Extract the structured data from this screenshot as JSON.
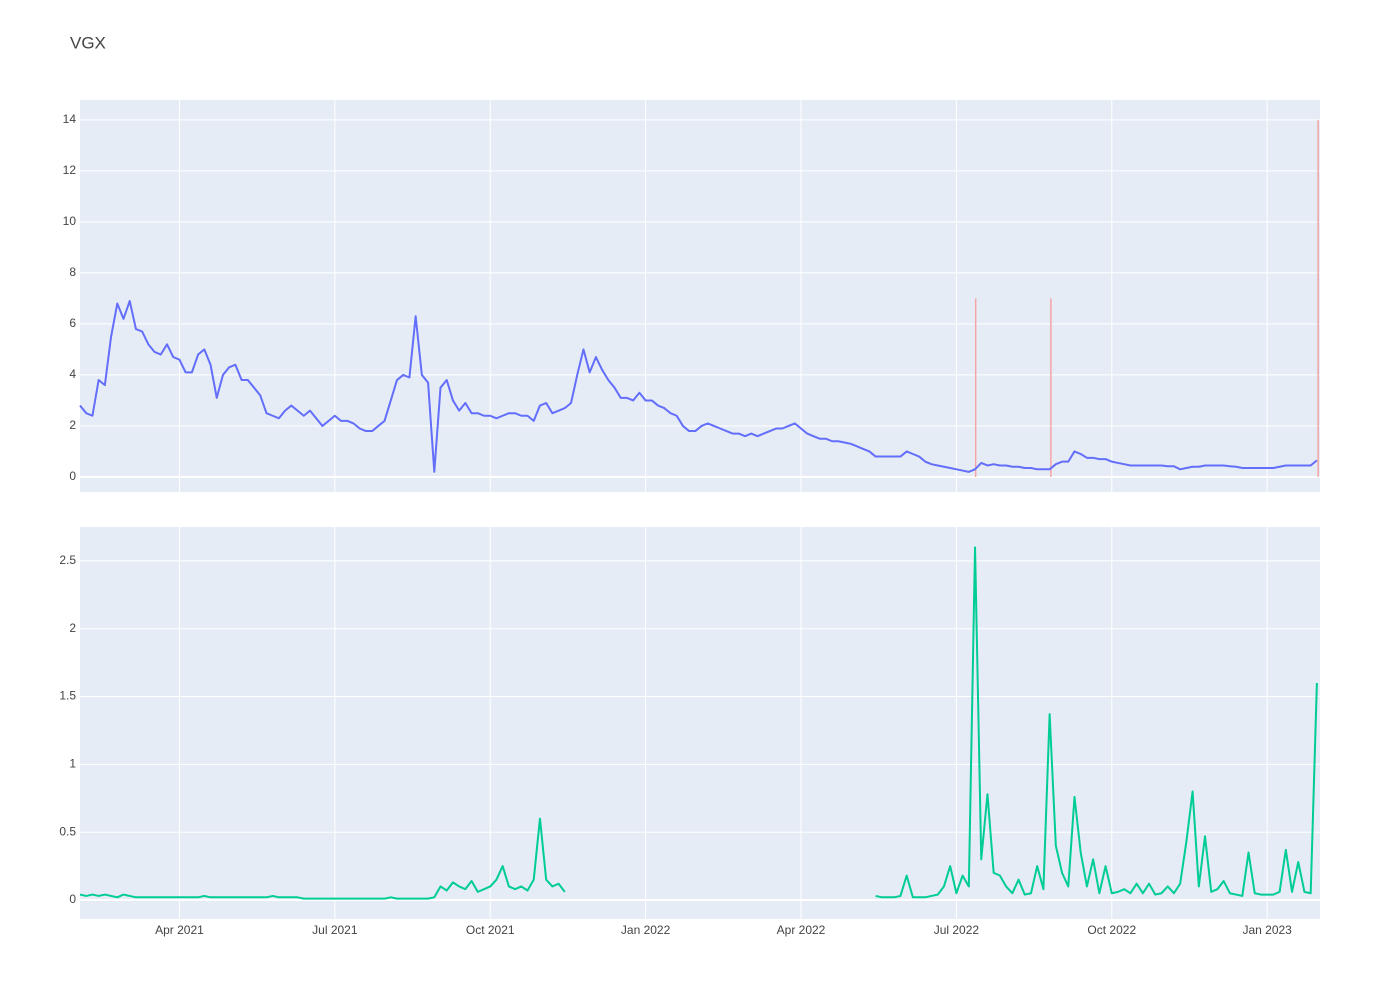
{
  "chart_data": {
    "type": "line",
    "title": "VGX",
    "x": [
      2021.09,
      2021.1,
      2021.11,
      2021.12,
      2021.13,
      2021.14,
      2021.15,
      2021.16,
      2021.17,
      2021.18,
      2021.19,
      2021.2,
      2021.21,
      2021.22,
      2021.23,
      2021.24,
      2021.25,
      2021.26,
      2021.27,
      2021.28,
      2021.29,
      2021.3,
      2021.31,
      2021.32,
      2021.33,
      2021.34,
      2021.35,
      2021.36,
      2021.37,
      2021.38,
      2021.39,
      2021.4,
      2021.41,
      2021.42,
      2021.43,
      2021.44,
      2021.45,
      2021.46,
      2021.47,
      2021.48,
      2021.49,
      2021.5,
      2021.51,
      2021.52,
      2021.53,
      2021.54,
      2021.55,
      2021.56,
      2021.57,
      2021.58,
      2021.59,
      2021.6,
      2021.61,
      2021.62,
      2021.63,
      2021.64,
      2021.65,
      2021.66,
      2021.67,
      2021.68,
      2021.69,
      2021.7,
      2021.71,
      2021.72,
      2021.73,
      2021.74,
      2021.75,
      2021.76,
      2021.77,
      2021.78,
      2021.79,
      2021.8,
      2021.81,
      2021.82,
      2021.83,
      2021.84,
      2021.85,
      2021.86,
      2021.87,
      2021.88,
      2021.89,
      2021.9,
      2021.91,
      2021.92,
      2021.93,
      2021.94,
      2021.95,
      2021.96,
      2021.97,
      2021.98,
      2021.99,
      2022.0,
      2022.01,
      2022.02,
      2022.03,
      2022.04,
      2022.05,
      2022.06,
      2022.07,
      2022.08,
      2022.09,
      2022.1,
      2022.11,
      2022.12,
      2022.13,
      2022.14,
      2022.15,
      2022.16,
      2022.17,
      2022.18,
      2022.19,
      2022.2,
      2022.21,
      2022.22,
      2022.23,
      2022.24,
      2022.25,
      2022.26,
      2022.27,
      2022.28,
      2022.29,
      2022.3,
      2022.31,
      2022.32,
      2022.33,
      2022.34,
      2022.35,
      2022.36,
      2022.37,
      2022.38,
      2022.39,
      2022.4,
      2022.41,
      2022.42,
      2022.43,
      2022.44,
      2022.45,
      2022.46,
      2022.47,
      2022.48,
      2022.49,
      2022.5,
      2022.51,
      2022.52,
      2022.53,
      2022.54,
      2022.55,
      2022.56,
      2022.57,
      2022.58,
      2022.59,
      2022.6,
      2022.61,
      2022.62,
      2022.63,
      2022.64,
      2022.65,
      2022.66,
      2022.67,
      2022.68,
      2022.69,
      2022.7,
      2022.71,
      2022.72,
      2022.73,
      2022.74,
      2022.75,
      2022.76,
      2022.77,
      2022.78,
      2022.79,
      2022.8,
      2022.81,
      2022.82,
      2022.83,
      2022.84,
      2022.85,
      2022.86,
      2022.87,
      2022.88,
      2022.89,
      2022.9,
      2022.91,
      2022.92,
      2022.93,
      2022.94,
      2022.95,
      2022.96,
      2022.97,
      2022.98,
      2022.99,
      2023.0,
      2023.01,
      2023.02,
      2023.03,
      2023.04,
      2023.05,
      2023.06,
      2023.07,
      2023.08
    ],
    "series": [
      {
        "color": "#636efa",
        "values": [
          2.8,
          2.5,
          2.4,
          3.8,
          3.6,
          5.5,
          6.8,
          6.2,
          6.9,
          5.8,
          5.7,
          5.2,
          4.9,
          4.8,
          5.2,
          4.7,
          4.6,
          4.1,
          4.1,
          4.8,
          5.0,
          4.4,
          3.1,
          4.0,
          4.3,
          4.4,
          3.8,
          3.8,
          3.5,
          3.2,
          2.5,
          2.4,
          2.3,
          2.6,
          2.8,
          2.6,
          2.4,
          2.6,
          2.3,
          2.0,
          2.2,
          2.4,
          2.2,
          2.2,
          2.1,
          1.9,
          1.8,
          1.8,
          2.0,
          2.2,
          3.0,
          3.8,
          4.0,
          3.9,
          6.3,
          4.0,
          3.7,
          0.2,
          3.5,
          3.8,
          3.0,
          2.6,
          2.9,
          2.5,
          2.5,
          2.4,
          2.4,
          2.3,
          2.4,
          2.5,
          2.5,
          2.4,
          2.4,
          2.2,
          2.8,
          2.9,
          2.5,
          2.6,
          2.7,
          2.9,
          4.0,
          5.0,
          4.1,
          4.7,
          4.2,
          3.8,
          3.5,
          3.1,
          3.1,
          3.0,
          3.3,
          3.0,
          3.0,
          2.8,
          2.7,
          2.5,
          2.4,
          2.0,
          1.8,
          1.8,
          2.0,
          2.1,
          2.0,
          1.9,
          1.8,
          1.7,
          1.7,
          1.6,
          1.7,
          1.6,
          1.7,
          1.8,
          1.9,
          1.9,
          2.0,
          2.1,
          1.9,
          1.7,
          1.6,
          1.5,
          1.5,
          1.4,
          1.4,
          1.35,
          1.3,
          1.2,
          1.1,
          1.0,
          0.8,
          0.8,
          0.8,
          0.8,
          0.8,
          1.0,
          0.9,
          0.8,
          0.6,
          0.5,
          0.45,
          0.4,
          0.35,
          0.3,
          0.25,
          0.2,
          0.3,
          0.55,
          0.45,
          0.5,
          0.45,
          0.45,
          0.4,
          0.4,
          0.35,
          0.35,
          0.3,
          0.3,
          0.3,
          0.5,
          0.6,
          0.6,
          1.0,
          0.9,
          0.75,
          0.75,
          0.7,
          0.7,
          0.6,
          0.55,
          0.5,
          0.45,
          0.45,
          0.45,
          0.45,
          0.45,
          0.45,
          0.42,
          0.42,
          0.3,
          0.35,
          0.4,
          0.4,
          0.45,
          0.45,
          0.45,
          0.45,
          0.42,
          0.4,
          0.35,
          0.35,
          0.35,
          0.35,
          0.35,
          0.35,
          0.4,
          0.45,
          0.45,
          0.45,
          0.45,
          0.45,
          0.65
        ]
      },
      {
        "color": "#00cc96",
        "axis": "y2",
        "values": [
          0.04,
          0.03,
          0.04,
          0.03,
          0.04,
          0.03,
          0.02,
          0.04,
          0.03,
          0.02,
          0.02,
          0.02,
          0.02,
          0.02,
          0.02,
          0.02,
          0.02,
          0.02,
          0.02,
          0.02,
          0.03,
          0.02,
          0.02,
          0.02,
          0.02,
          0.02,
          0.02,
          0.02,
          0.02,
          0.02,
          0.02,
          0.03,
          0.02,
          0.02,
          0.02,
          0.02,
          0.01,
          0.01,
          0.01,
          0.01,
          0.01,
          0.01,
          0.01,
          0.01,
          0.01,
          0.01,
          0.01,
          0.01,
          0.01,
          0.01,
          0.02,
          0.01,
          0.01,
          0.01,
          0.01,
          0.01,
          0.01,
          0.02,
          0.1,
          0.07,
          0.13,
          0.1,
          0.08,
          0.14,
          0.06,
          0.08,
          0.1,
          0.15,
          0.25,
          0.1,
          0.08,
          0.1,
          0.07,
          0.15,
          0.6,
          0.15,
          0.1,
          0.12,
          0.06,
          null,
          null,
          null,
          null,
          null,
          null,
          null,
          null,
          null,
          null,
          null,
          null,
          null,
          null,
          null,
          null,
          null,
          null,
          null,
          null,
          null,
          null,
          null,
          null,
          null,
          null,
          null,
          null,
          null,
          null,
          null,
          null,
          null,
          null,
          null,
          null,
          null,
          null,
          null,
          null,
          null,
          null,
          null,
          null,
          null,
          null,
          null,
          null,
          null,
          0.03,
          0.02,
          0.02,
          0.02,
          0.03,
          0.18,
          0.02,
          0.02,
          0.02,
          0.03,
          0.04,
          0.1,
          0.25,
          0.05,
          0.18,
          0.1,
          2.6,
          0.3,
          0.78,
          0.2,
          0.18,
          0.1,
          0.05,
          0.15,
          0.04,
          0.05,
          0.25,
          0.08,
          1.37,
          0.4,
          0.2,
          0.1,
          0.76,
          0.35,
          0.1,
          0.3,
          0.05,
          0.25,
          0.05,
          0.06,
          0.08,
          0.05,
          0.12,
          0.05,
          0.12,
          0.04,
          0.05,
          0.1,
          0.05,
          0.12,
          0.43,
          0.8,
          0.1,
          0.47,
          0.06,
          0.08,
          0.14,
          0.05,
          0.04,
          0.03,
          0.35,
          0.05,
          0.04,
          0.04,
          0.04,
          0.06,
          0.37,
          0.06,
          0.28,
          0.06,
          0.05,
          1.6
        ]
      }
    ],
    "vlines": {
      "color": "#f4a6a6",
      "x": [
        2022.531,
        2022.652,
        2023.082
      ],
      "values": [
        7,
        7,
        14
      ]
    },
    "xlim": [
      2021.09,
      2023.085
    ],
    "xticks": [
      {
        "value": 2021.25,
        "label": "Apr 2021"
      },
      {
        "value": 2021.5,
        "label": "Jul 2021"
      },
      {
        "value": 2021.75,
        "label": "Oct 2021"
      },
      {
        "value": 2022.0,
        "label": "Jan 2022"
      },
      {
        "value": 2022.25,
        "label": "Apr 2022"
      },
      {
        "value": 2022.5,
        "label": "Jul 2022"
      },
      {
        "value": 2022.75,
        "label": "Oct 2022"
      },
      {
        "value": 2023.0,
        "label": "Jan 2023"
      }
    ],
    "ylim": [
      -0.59,
      14.78
    ],
    "yticks": [
      0,
      2,
      4,
      6,
      8,
      10,
      12,
      14
    ],
    "y2lim": [
      -0.14,
      2.75
    ],
    "y2ticks": [
      0,
      0.5,
      1,
      1.5,
      2,
      2.5
    ],
    "grid": true
  }
}
